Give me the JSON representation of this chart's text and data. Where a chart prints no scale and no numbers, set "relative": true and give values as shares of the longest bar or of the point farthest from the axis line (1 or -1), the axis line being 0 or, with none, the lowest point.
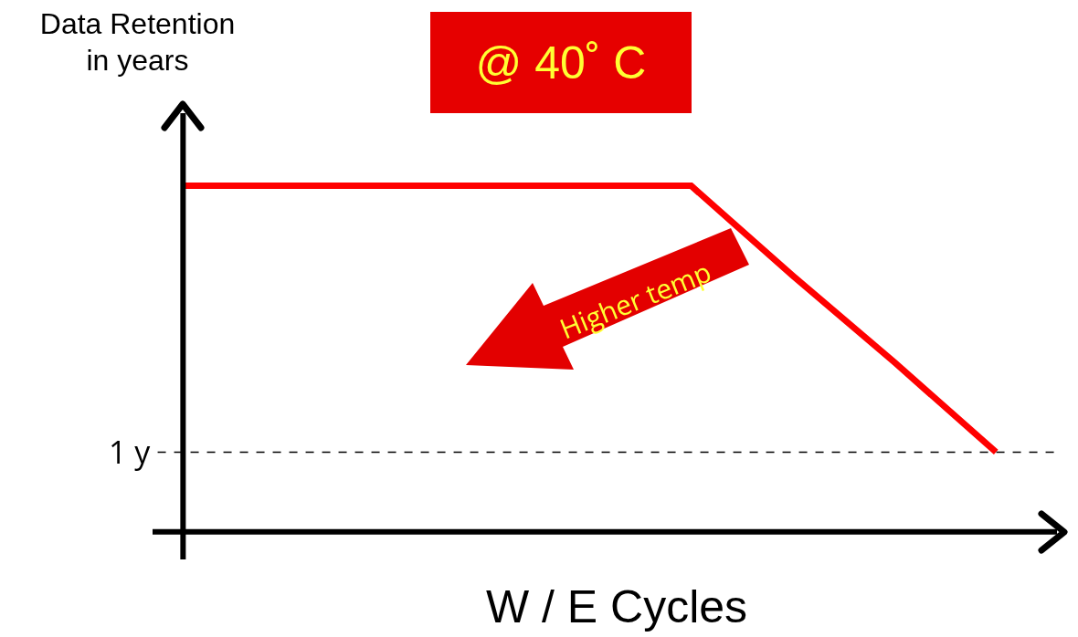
{
  "chart_data": {
    "type": "line",
    "title": "@ 40˚ C",
    "xlabel": "W / E Cycles",
    "ylabel": "Data Retention\nin years",
    "relative": true,
    "categories": [
      null,
      null,
      null,
      null,
      null,
      null,
      null,
      null,
      null
    ],
    "series": [
      {
        "color": "#ff0000",
        "values": [
          1,
          1,
          1,
          1,
          1,
          1,
          0.74,
          0.49,
          0.23
        ]
      }
    ],
    "ref_lines": [
      {
        "axis": "y",
        "value": 0.23,
        "label": "1 y",
        "color": "#000000",
        "line_style": "dashed"
      }
    ],
    "annotations": [
      "Higher temp"
    ]
  }
}
